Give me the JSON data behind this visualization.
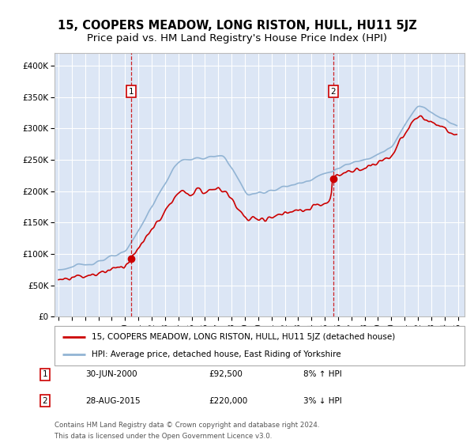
{
  "title": "15, COOPERS MEADOW, LONG RISTON, HULL, HU11 5JZ",
  "subtitle": "Price paid vs. HM Land Registry's House Price Index (HPI)",
  "ylim": [
    0,
    420000
  ],
  "yticks": [
    0,
    50000,
    100000,
    150000,
    200000,
    250000,
    300000,
    350000,
    400000
  ],
  "ytick_labels": [
    "£0",
    "£50K",
    "£100K",
    "£150K",
    "£200K",
    "£250K",
    "£300K",
    "£350K",
    "£400K"
  ],
  "background_color": "#dce6f5",
  "grid_color": "#ffffff",
  "red_line_color": "#cc0000",
  "blue_line_color": "#92b4d4",
  "sale1_year": 2000.458,
  "sale1_value": 92500,
  "sale2_year": 2015.625,
  "sale2_value": 220000,
  "legend_line1": "15, COOPERS MEADOW, LONG RISTON, HULL, HU11 5JZ (detached house)",
  "legend_line2": "HPI: Average price, detached house, East Riding of Yorkshire",
  "ann1_date": "30-JUN-2000",
  "ann1_price": "£92,500",
  "ann1_hpi": "8% ↑ HPI",
  "ann2_date": "28-AUG-2015",
  "ann2_price": "£220,000",
  "ann2_hpi": "3% ↓ HPI",
  "footnote1": "Contains HM Land Registry data © Crown copyright and database right 2024.",
  "footnote2": "This data is licensed under the Open Government Licence v3.0.",
  "title_fontsize": 10.5,
  "subtitle_fontsize": 9.5
}
